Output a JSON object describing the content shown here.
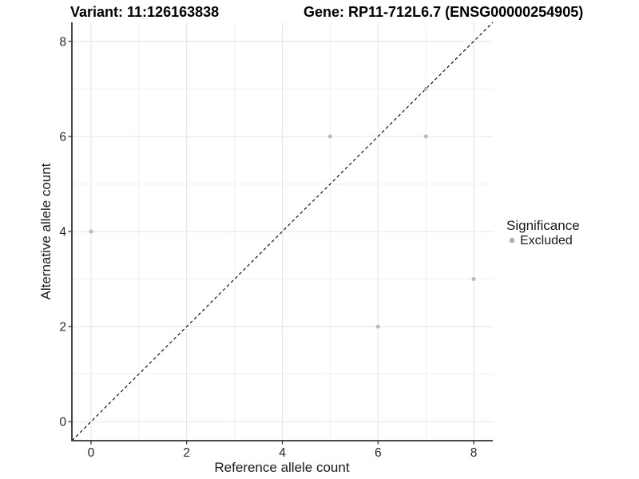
{
  "header": {
    "variant_title": "Variant: 11:126163838",
    "gene_title": "Gene: RP11-712L6.7 (ENSG00000254905)"
  },
  "chart_data": {
    "type": "scatter",
    "title_left": "Variant: 11:126163838",
    "title_right": "Gene: RP11-712L6.7 (ENSG00000254905)",
    "xlabel": "Reference allele count",
    "ylabel": "Alternative allele count",
    "xlim": [
      -0.4,
      8.4
    ],
    "ylim": [
      -0.4,
      8.4
    ],
    "x_ticks": [
      0,
      2,
      4,
      6,
      8
    ],
    "y_ticks": [
      0,
      2,
      4,
      6,
      8
    ],
    "x_minor_gridlines": [
      1,
      3,
      5,
      7
    ],
    "y_minor_gridlines": [
      1,
      3,
      5,
      7
    ],
    "grid": true,
    "series": [
      {
        "name": "Excluded",
        "point_color": "#b9b9b9",
        "points": [
          [
            0,
            4
          ],
          [
            5,
            6
          ],
          [
            6,
            2
          ],
          [
            7,
            6
          ],
          [
            7,
            7
          ],
          [
            8,
            3
          ]
        ]
      }
    ],
    "reference_line": {
      "kind": "identity-diagonal",
      "style": "dashed",
      "color": "#000000"
    },
    "legend": {
      "title": "Significance",
      "position": "right",
      "items": [
        {
          "label": "Excluded",
          "color": "#aeaeae"
        }
      ]
    },
    "colors": {
      "background": "#ffffff",
      "grid_major": "#e4e4e4",
      "grid_minor": "#f1f1f1",
      "axis_line": "#333333",
      "tick_mark": "#333333",
      "point": "#b9b9b9",
      "diagonal": "#000000"
    }
  }
}
